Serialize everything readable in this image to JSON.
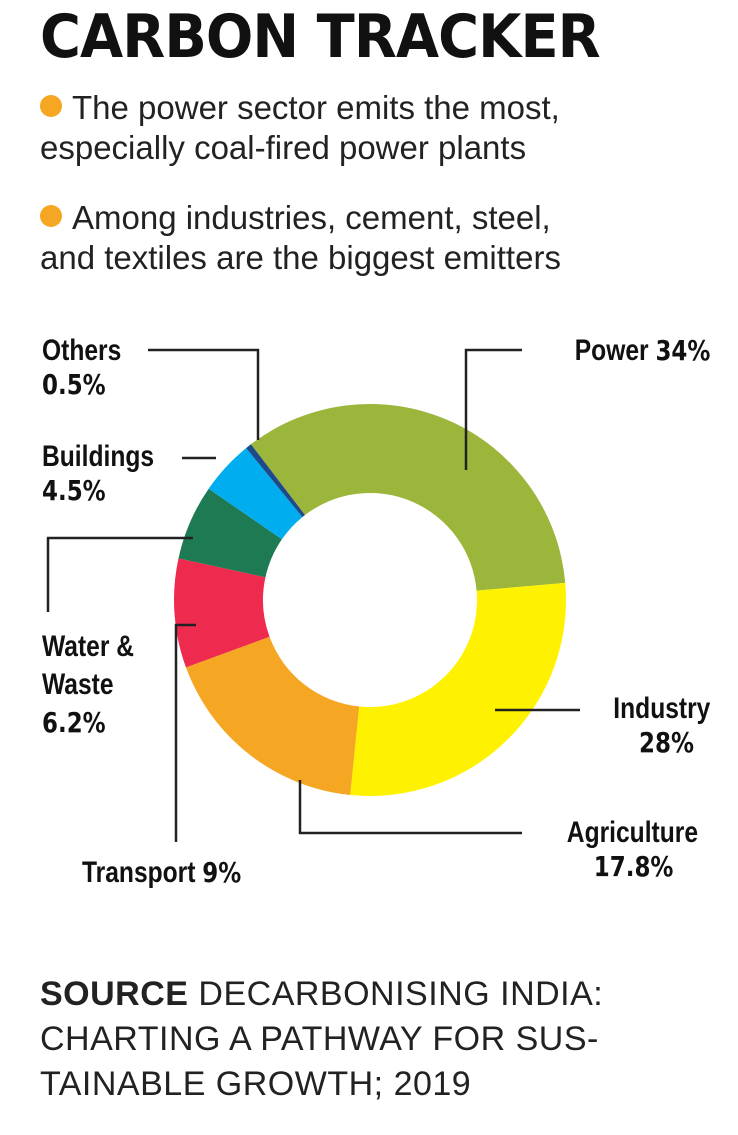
{
  "header": {
    "title": "CARBON TRACKER",
    "bullets": [
      {
        "line1": "The power sector emits the most,",
        "line2": "especially coal-fired power plants"
      },
      {
        "line1": "Among industries, cement, steel,",
        "line2": "and textiles are the biggest emitters"
      }
    ],
    "bullet_color": "#f5a623"
  },
  "chart_data": {
    "type": "pie",
    "variant": "donut",
    "title": "",
    "categories": [
      "Power",
      "Industry",
      "Agriculture",
      "Transport",
      "Water & Waste",
      "Buildings",
      "Others"
    ],
    "values": [
      34,
      28,
      17.8,
      9,
      6.2,
      4.5,
      0.5
    ],
    "unit": "%",
    "value_labels": [
      "34%",
      "28%",
      "17.8%",
      "9%",
      "6.2%",
      "4.5%",
      "0.5%"
    ],
    "colors": [
      "#9cb53b",
      "#fff200",
      "#f5a623",
      "#ee2a4f",
      "#1d7a52",
      "#00aeef",
      "#1f4a8a"
    ]
  },
  "footer": {
    "source_label": "SOURCE",
    "source_line1": " DECARBONISING INDIA:",
    "source_line2": "CHARTING A PATHWAY FOR SUS-",
    "source_line3": "TAINABLE GROWTH; 2019"
  }
}
